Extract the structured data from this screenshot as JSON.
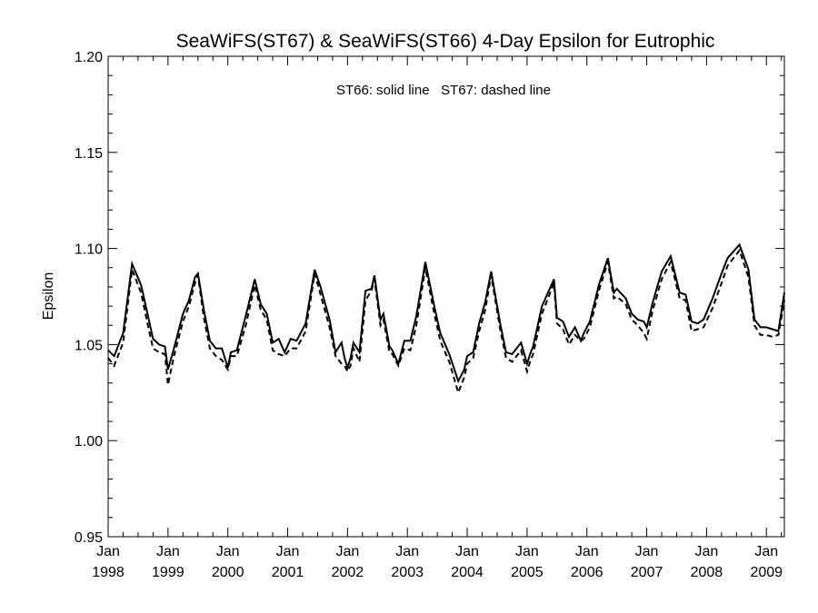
{
  "chart_data": {
    "type": "line",
    "title": "SeaWiFS(ST67) & SeaWiFS(ST66) 4-Day Epsilon for Eutrophic",
    "annotation": "ST66: solid line   ST67: dashed line",
    "ylabel": "Epsilon",
    "xlabel": "",
    "xlim": [
      1998.0,
      2009.3
    ],
    "ylim": [
      0.95,
      1.2
    ],
    "yticks": [
      "0.95",
      "1.00",
      "1.05",
      "1.10",
      "1.15",
      "1.20"
    ],
    "xticks": [
      {
        "line1": "Jan",
        "line2": "1998",
        "x": 1998.0
      },
      {
        "line1": "Jan",
        "line2": "1999",
        "x": 1999.0
      },
      {
        "line1": "Jan",
        "line2": "2000",
        "x": 2000.0
      },
      {
        "line1": "Jan",
        "line2": "2001",
        "x": 2001.0
      },
      {
        "line1": "Jan",
        "line2": "2002",
        "x": 2002.0
      },
      {
        "line1": "Jan",
        "line2": "2003",
        "x": 2003.0
      },
      {
        "line1": "Jan",
        "line2": "2004",
        "x": 2004.0
      },
      {
        "line1": "Jan",
        "line2": "2005",
        "x": 2005.0
      },
      {
        "line1": "Jan",
        "line2": "2006",
        "x": 2006.0
      },
      {
        "line1": "Jan",
        "line2": "2007",
        "x": 2007.0
      },
      {
        "line1": "Jan",
        "line2": "2008",
        "x": 2008.0
      },
      {
        "line1": "Jan",
        "line2": "2009",
        "x": 2009.0
      }
    ],
    "series": [
      {
        "name": "ST66",
        "style": "solid",
        "color": "#000000",
        "x": [
          1998.0,
          1998.1,
          1998.25,
          1998.4,
          1998.55,
          1998.65,
          1998.75,
          1998.85,
          1998.95,
          1999.0,
          1999.1,
          1999.25,
          1999.35,
          1999.45,
          1999.5,
          1999.6,
          1999.7,
          1999.8,
          1999.9,
          2000.0,
          2000.05,
          2000.15,
          2000.3,
          2000.45,
          2000.55,
          2000.65,
          2000.75,
          2000.85,
          2000.95,
          2001.05,
          2001.15,
          2001.3,
          2001.45,
          2001.55,
          2001.7,
          2001.8,
          2001.9,
          2001.95,
          2002.0,
          2002.05,
          2002.1,
          2002.2,
          2002.3,
          2002.4,
          2002.45,
          2002.55,
          2002.6,
          2002.7,
          2002.75,
          2002.85,
          2002.95,
          2003.05,
          2003.15,
          2003.3,
          2003.45,
          2003.55,
          2003.7,
          2003.85,
          2003.95,
          2004.0,
          2004.1,
          2004.2,
          2004.3,
          2004.4,
          2004.55,
          2004.65,
          2004.75,
          2004.9,
          2005.0,
          2005.05,
          2005.1,
          2005.25,
          2005.45,
          2005.5,
          2005.6,
          2005.7,
          2005.8,
          2005.9,
          2005.95,
          2006.05,
          2006.2,
          2006.35,
          2006.45,
          2006.5,
          2006.65,
          2006.75,
          2006.85,
          2006.95,
          2007.0,
          2007.1,
          2007.25,
          2007.4,
          2007.55,
          2007.65,
          2007.75,
          2007.85,
          2007.95,
          2008.1,
          2008.25,
          2008.35,
          2008.55,
          2008.7,
          2008.8,
          2008.9,
          2009.0,
          2009.1,
          2009.2,
          2009.3
        ],
        "y": [
          1.047,
          1.044,
          1.056,
          1.092,
          1.081,
          1.067,
          1.053,
          1.05,
          1.049,
          1.037,
          1.048,
          1.066,
          1.073,
          1.085,
          1.087,
          1.068,
          1.052,
          1.048,
          1.048,
          1.038,
          1.046,
          1.047,
          1.065,
          1.084,
          1.071,
          1.066,
          1.051,
          1.053,
          1.046,
          1.053,
          1.052,
          1.061,
          1.089,
          1.08,
          1.063,
          1.046,
          1.051,
          1.043,
          1.038,
          1.043,
          1.051,
          1.046,
          1.078,
          1.079,
          1.086,
          1.063,
          1.066,
          1.049,
          1.047,
          1.04,
          1.052,
          1.052,
          1.065,
          1.093,
          1.07,
          1.056,
          1.045,
          1.031,
          1.037,
          1.044,
          1.046,
          1.061,
          1.072,
          1.088,
          1.061,
          1.046,
          1.045,
          1.051,
          1.04,
          1.045,
          1.049,
          1.07,
          1.084,
          1.064,
          1.062,
          1.054,
          1.059,
          1.052,
          1.056,
          1.062,
          1.081,
          1.095,
          1.077,
          1.079,
          1.074,
          1.066,
          1.063,
          1.062,
          1.059,
          1.072,
          1.088,
          1.096,
          1.077,
          1.076,
          1.062,
          1.061,
          1.063,
          1.074,
          1.087,
          1.095,
          1.102,
          1.089,
          1.063,
          1.059,
          1.059,
          1.058,
          1.057,
          1.077
        ]
      },
      {
        "name": "ST67",
        "style": "dashed",
        "color": "#000000",
        "x": [
          1998.0,
          1998.1,
          1998.25,
          1998.4,
          1998.55,
          1998.65,
          1998.75,
          1998.85,
          1998.95,
          1999.0,
          1999.1,
          1999.25,
          1999.35,
          1999.45,
          1999.5,
          1999.6,
          1999.7,
          1999.8,
          1999.9,
          2000.0,
          2000.05,
          2000.15,
          2000.3,
          2000.45,
          2000.55,
          2000.65,
          2000.75,
          2000.85,
          2000.95,
          2001.05,
          2001.15,
          2001.3,
          2001.45,
          2001.55,
          2001.7,
          2001.8,
          2001.9,
          2001.95,
          2002.0,
          2002.05,
          2002.1,
          2002.2,
          2002.3,
          2002.4,
          2002.45,
          2002.55,
          2002.6,
          2002.7,
          2002.75,
          2002.85,
          2002.95,
          2003.05,
          2003.15,
          2003.3,
          2003.45,
          2003.55,
          2003.7,
          2003.85,
          2003.95,
          2004.0,
          2004.1,
          2004.2,
          2004.3,
          2004.4,
          2004.55,
          2004.65,
          2004.75,
          2004.9,
          2005.0,
          2005.05,
          2005.1,
          2005.25,
          2005.45,
          2005.5,
          2005.6,
          2005.7,
          2005.8,
          2005.9,
          2005.95,
          2006.05,
          2006.2,
          2006.35,
          2006.45,
          2006.5,
          2006.65,
          2006.75,
          2006.85,
          2006.95,
          2007.0,
          2007.1,
          2007.25,
          2007.4,
          2007.55,
          2007.65,
          2007.75,
          2007.85,
          2007.95,
          2008.1,
          2008.25,
          2008.35,
          2008.55,
          2008.7,
          2008.8,
          2008.9,
          2009.0,
          2009.1,
          2009.2,
          2009.3
        ],
        "y": [
          1.043,
          1.039,
          1.051,
          1.089,
          1.077,
          1.062,
          1.048,
          1.046,
          1.045,
          1.029,
          1.044,
          1.062,
          1.07,
          1.082,
          1.086,
          1.064,
          1.048,
          1.044,
          1.042,
          1.037,
          1.044,
          1.044,
          1.06,
          1.081,
          1.068,
          1.063,
          1.047,
          1.045,
          1.044,
          1.048,
          1.048,
          1.057,
          1.087,
          1.076,
          1.059,
          1.044,
          1.04,
          1.039,
          1.036,
          1.039,
          1.048,
          1.041,
          1.073,
          1.078,
          1.084,
          1.06,
          1.063,
          1.046,
          1.045,
          1.039,
          1.048,
          1.047,
          1.06,
          1.09,
          1.066,
          1.052,
          1.041,
          1.025,
          1.033,
          1.04,
          1.043,
          1.057,
          1.068,
          1.086,
          1.058,
          1.043,
          1.041,
          1.047,
          1.036,
          1.041,
          1.045,
          1.066,
          1.082,
          1.061,
          1.058,
          1.05,
          1.055,
          1.052,
          1.053,
          1.059,
          1.078,
          1.093,
          1.074,
          1.075,
          1.071,
          1.063,
          1.06,
          1.056,
          1.053,
          1.068,
          1.084,
          1.093,
          1.074,
          1.073,
          1.057,
          1.058,
          1.059,
          1.069,
          1.082,
          1.091,
          1.099,
          1.085,
          1.06,
          1.055,
          1.055,
          1.054,
          1.055,
          1.073
        ]
      }
    ]
  }
}
